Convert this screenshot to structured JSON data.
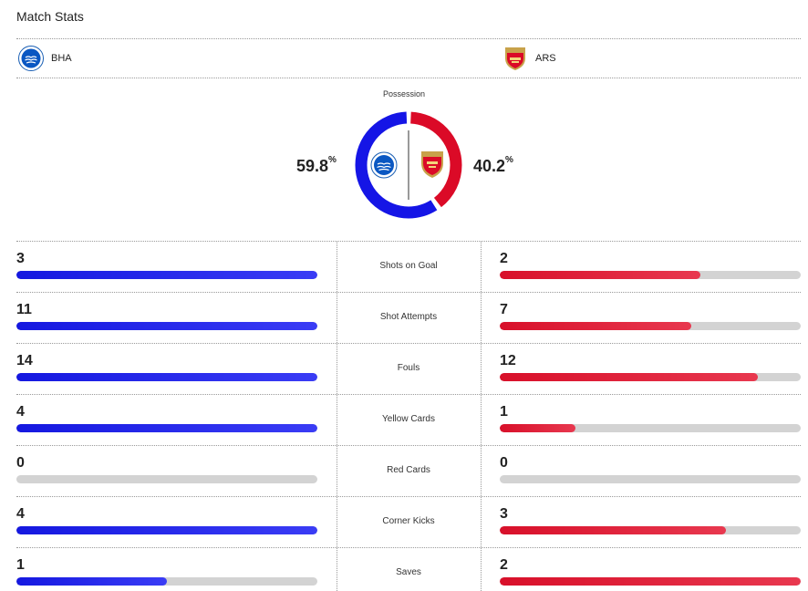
{
  "header": {
    "title": "Match Stats"
  },
  "teams": {
    "home": {
      "abbr": "BHA",
      "color": "#1515e6"
    },
    "away": {
      "abbr": "ARS",
      "color": "#db0a27"
    }
  },
  "possession": {
    "label": "Possession",
    "home_value": "59.8",
    "away_value": "40.2",
    "unit": "%"
  },
  "stats": [
    {
      "label": "Shots on Goal",
      "home": "3",
      "away": "2",
      "home_fill": 1.0,
      "away_fill": 0.667
    },
    {
      "label": "Shot Attempts",
      "home": "11",
      "away": "7",
      "home_fill": 1.0,
      "away_fill": 0.636
    },
    {
      "label": "Fouls",
      "home": "14",
      "away": "12",
      "home_fill": 1.0,
      "away_fill": 0.857
    },
    {
      "label": "Yellow Cards",
      "home": "4",
      "away": "1",
      "home_fill": 1.0,
      "away_fill": 0.25
    },
    {
      "label": "Red Cards",
      "home": "0",
      "away": "0",
      "home_fill": 0,
      "away_fill": 0
    },
    {
      "label": "Corner Kicks",
      "home": "4",
      "away": "3",
      "home_fill": 1.0,
      "away_fill": 0.75
    },
    {
      "label": "Saves",
      "home": "1",
      "away": "2",
      "home_fill": 0.5,
      "away_fill": 1.0
    }
  ]
}
